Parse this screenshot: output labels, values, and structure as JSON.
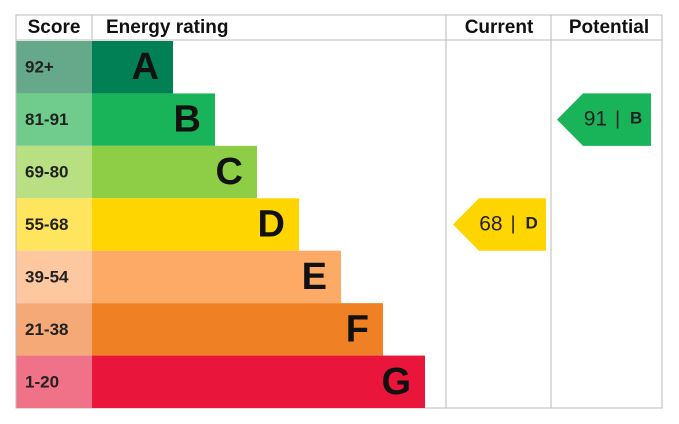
{
  "header": {
    "score": "Score",
    "rating": "Energy rating",
    "current": "Current",
    "potential": "Potential"
  },
  "bands": [
    {
      "score": "92+",
      "letter": "A",
      "color": "#008054",
      "score_color": "#66a98a"
    },
    {
      "score": "81-91",
      "letter": "B",
      "color": "#19b459",
      "score_color": "#70cc8c"
    },
    {
      "score": "69-80",
      "letter": "C",
      "color": "#8dce46",
      "score_color": "#b8e083"
    },
    {
      "score": "55-68",
      "letter": "D",
      "color": "#ffd500",
      "score_color": "#ffe45e"
    },
    {
      "score": "39-54",
      "letter": "E",
      "color": "#fcaa65",
      "score_color": "#fdc8a0"
    },
    {
      "score": "21-38",
      "letter": "F",
      "color": "#ef8023",
      "score_color": "#f4a976"
    },
    {
      "score": "1-20",
      "letter": "G",
      "color": "#e9153b",
      "score_color": "#f07289"
    }
  ],
  "current": {
    "value": 68,
    "separator": "|",
    "letter": "D"
  },
  "potential": {
    "value": 91,
    "separator": "|",
    "letter": "B"
  }
}
